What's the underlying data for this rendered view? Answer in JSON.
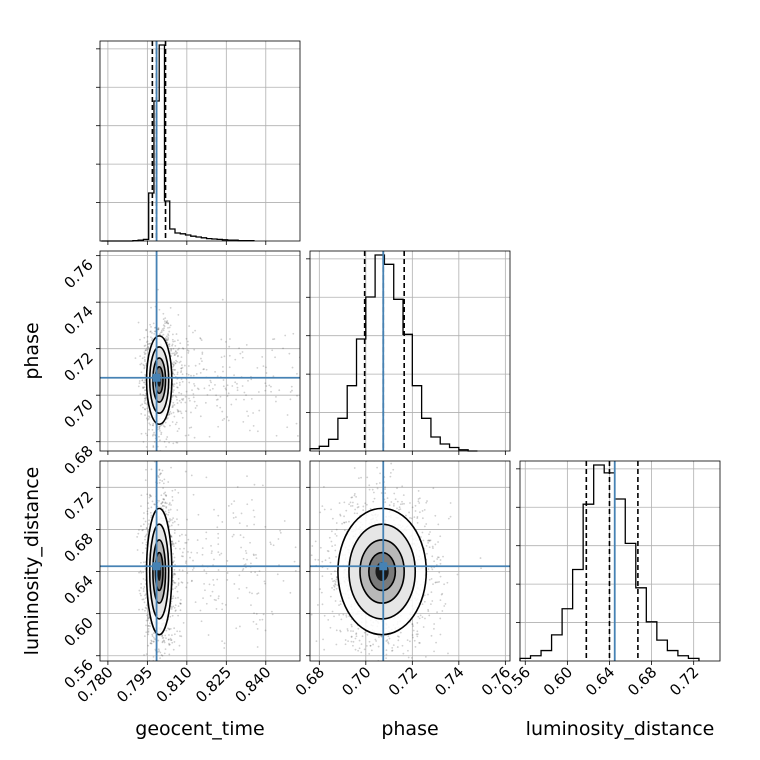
{
  "chart_data": {
    "type": "corner",
    "parameters": [
      {
        "name": "geocent_time",
        "label": "geocent_time",
        "range": [
          0.777,
          0.853
        ],
        "ticks": [
          "0.780",
          "0.795",
          "0.810",
          "0.825",
          "0.840"
        ],
        "tick_values": [
          0.78,
          0.795,
          0.81,
          0.825,
          0.84
        ],
        "truth": 0.7985,
        "quantiles": [
          0.7969,
          0.7985,
          0.8019
        ],
        "histogram": {
          "bin_edges": [
            0.7775,
            0.7795,
            0.7815,
            0.7835,
            0.7855,
            0.7875,
            0.7895,
            0.7915,
            0.7935,
            0.7955,
            0.7975,
            0.7995,
            0.8015,
            0.8035,
            0.8055,
            0.8075,
            0.8095,
            0.8115,
            0.8135,
            0.8155,
            0.8175,
            0.8195,
            0.8215,
            0.8235,
            0.8255,
            0.8275,
            0.8295,
            0.8315,
            0.8335,
            0.8355
          ],
          "counts": [
            0,
            0,
            0,
            0,
            0,
            0,
            1,
            2,
            4,
            120,
            350,
            490,
            100,
            30,
            20,
            18,
            15,
            12,
            10,
            8,
            6,
            5,
            4,
            3,
            2,
            2,
            1,
            1,
            1
          ]
        }
      },
      {
        "name": "phase",
        "label": "phase",
        "range": [
          0.676,
          0.762
        ],
        "ticks": [
          "0.68",
          "0.70",
          "0.72",
          "0.74",
          "0.76"
        ],
        "tick_values": [
          0.68,
          0.7,
          0.72,
          0.74,
          0.76
        ],
        "truth": 0.7075,
        "quantiles": [
          0.6995,
          0.7075,
          0.7165
        ],
        "histogram": {
          "bin_edges": [
            0.676,
            0.68,
            0.684,
            0.688,
            0.692,
            0.696,
            0.7,
            0.704,
            0.708,
            0.712,
            0.716,
            0.72,
            0.724,
            0.728,
            0.732,
            0.736,
            0.74,
            0.744,
            0.748
          ],
          "counts": [
            1,
            2,
            5,
            14,
            28,
            48,
            66,
            84,
            80,
            65,
            50,
            28,
            14,
            6,
            3,
            1.5,
            0.5,
            0
          ]
        }
      },
      {
        "name": "luminosity_distance",
        "label": "luminosity_distance",
        "range": [
          0.555,
          0.745
        ],
        "ticks": [
          "0.56",
          "0.60",
          "0.64",
          "0.68",
          "0.72"
        ],
        "tick_values": [
          0.56,
          0.6,
          0.64,
          0.68,
          0.72
        ],
        "truth": 0.645,
        "quantiles": [
          0.618,
          0.64,
          0.667
        ],
        "histogram": {
          "bin_edges": [
            0.555,
            0.565,
            0.575,
            0.585,
            0.595,
            0.605,
            0.615,
            0.625,
            0.635,
            0.645,
            0.655,
            0.665,
            0.675,
            0.685,
            0.695,
            0.705,
            0.715,
            0.725
          ],
          "counts": [
            1,
            2,
            4,
            10,
            20,
            35,
            60,
            75,
            72,
            62,
            45,
            28,
            15,
            8,
            4,
            2,
            1
          ]
        }
      }
    ],
    "pairs": [
      {
        "x": "geocent_time",
        "y": "phase",
        "center": [
          0.7995,
          0.7065
        ],
        "sigma": [
          0.0024,
          0.0095
        ],
        "tail_x": 0.02
      },
      {
        "x": "geocent_time",
        "y": "luminosity_distance",
        "center": [
          0.7995,
          0.64
        ],
        "sigma": [
          0.0024,
          0.03
        ],
        "tail_x": 0.02
      },
      {
        "x": "phase",
        "y": "luminosity_distance",
        "center": [
          0.707,
          0.64
        ],
        "sigma": [
          0.0095,
          0.03
        ],
        "tail_x": 0
      }
    ],
    "colors": {
      "truth": "#4682b4",
      "hist": "#000000",
      "grid": "#b0b0b0",
      "points": "#555555"
    },
    "grid": true,
    "contour_levels": [
      "0.5-sigma",
      "1-sigma",
      "1.5-sigma",
      "2-sigma"
    ]
  }
}
